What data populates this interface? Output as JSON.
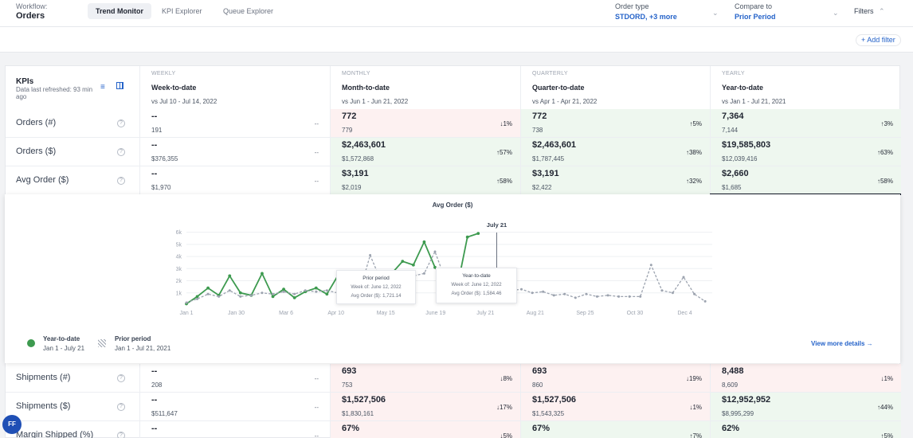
{
  "header": {
    "workflow_label": "Workflow:",
    "workflow_name": "Orders",
    "tabs": [
      {
        "label": "Trend Monitor",
        "active": true
      },
      {
        "label": "KPI Explorer",
        "active": false
      },
      {
        "label": "Queue Explorer",
        "active": false
      }
    ],
    "order_type": {
      "label": "Order type",
      "value": "STDORD, +3 more"
    },
    "compare_to": {
      "label": "Compare to",
      "value": "Prior Period"
    },
    "filters_label": "Filters",
    "add_filter_label": "+ Add filter"
  },
  "kpis": {
    "title": "KPIs",
    "refreshed": "Data last refreshed: 93 min ago",
    "columns": [
      {
        "period": "WEEKLY",
        "ptd": "Week-to-date",
        "vs": "vs Jul 10 - Jul 14, 2022"
      },
      {
        "period": "MONTHLY",
        "ptd": "Month-to-date",
        "vs": "vs Jun 1 - Jun 21, 2022"
      },
      {
        "period": "QUARTERLY",
        "ptd": "Quarter-to-date",
        "vs": "vs Apr 1 - Apr 21, 2022"
      },
      {
        "period": "YEARLY",
        "ptd": "Year-to-date",
        "vs": "vs Jan 1 - Jul 21, 2021"
      }
    ],
    "rows_top": [
      {
        "label": "Orders (#)",
        "cells": [
          {
            "value": "--",
            "prior": "191",
            "change": "--",
            "tone": "none"
          },
          {
            "value": "772",
            "prior": "779",
            "change": "↓1%",
            "tone": "red"
          },
          {
            "value": "772",
            "prior": "738",
            "change": "↑5%",
            "tone": "green"
          },
          {
            "value": "7,364",
            "prior": "7,144",
            "change": "↑3%",
            "tone": "green"
          }
        ]
      },
      {
        "label": "Orders ($)",
        "cells": [
          {
            "value": "--",
            "prior": "$376,355",
            "change": "--",
            "tone": "none"
          },
          {
            "value": "$2,463,601",
            "prior": "$1,572,868",
            "change": "↑57%",
            "tone": "green"
          },
          {
            "value": "$2,463,601",
            "prior": "$1,787,445",
            "change": "↑38%",
            "tone": "green"
          },
          {
            "value": "$19,585,803",
            "prior": "$12,039,416",
            "change": "↑63%",
            "tone": "green"
          }
        ]
      },
      {
        "label": "Avg Order ($)",
        "cells": [
          {
            "value": "--",
            "prior": "$1,970",
            "change": "--",
            "tone": "none"
          },
          {
            "value": "$3,191",
            "prior": "$2,019",
            "change": "↑58%",
            "tone": "green"
          },
          {
            "value": "$3,191",
            "prior": "$2,422",
            "change": "↑32%",
            "tone": "green"
          },
          {
            "value": "$2,660",
            "prior": "$1,685",
            "change": "↑58%",
            "tone": "green"
          }
        ]
      }
    ],
    "rows_bottom": [
      {
        "label": "Shipments (#)",
        "cells": [
          {
            "value": "--",
            "prior": "208",
            "change": "--",
            "tone": "none"
          },
          {
            "value": "693",
            "prior": "753",
            "change": "↓8%",
            "tone": "red"
          },
          {
            "value": "693",
            "prior": "860",
            "change": "↓19%",
            "tone": "red"
          },
          {
            "value": "8,488",
            "prior": "8,609",
            "change": "↓1%",
            "tone": "red"
          }
        ]
      },
      {
        "label": "Shipments ($)",
        "cells": [
          {
            "value": "--",
            "prior": "$511,647",
            "change": "--",
            "tone": "none"
          },
          {
            "value": "$1,527,506",
            "prior": "$1,830,161",
            "change": "↓17%",
            "tone": "red"
          },
          {
            "value": "$1,527,506",
            "prior": "$1,543,325",
            "change": "↓1%",
            "tone": "red"
          },
          {
            "value": "$12,952,952",
            "prior": "$8,995,299",
            "change": "↑44%",
            "tone": "green"
          }
        ]
      },
      {
        "label": "Margin Shipped (%)",
        "cells": [
          {
            "value": "--",
            "prior": "",
            "change": "--",
            "tone": "none"
          },
          {
            "value": "67%",
            "prior": "",
            "change": "↓5%",
            "tone": "red"
          },
          {
            "value": "67%",
            "prior": "",
            "change": "↑7%",
            "tone": "green"
          },
          {
            "value": "62%",
            "prior": "",
            "change": "↑5%",
            "tone": "green"
          }
        ]
      }
    ]
  },
  "chart_data": {
    "type": "line",
    "title": "Avg Order ($)",
    "x_ticks": [
      "Jan 1",
      "Jan 30",
      "Mar 6",
      "Apr 10",
      "May 15",
      "June 19",
      "July 21",
      "Aug 21",
      "Sep 25",
      "Oct 30",
      "Dec 4"
    ],
    "y_ticks": [
      "1k",
      "2k",
      "3k",
      "4k",
      "5k",
      "6k"
    ],
    "ylim": [
      0,
      6500
    ],
    "x_range": [
      0,
      338
    ],
    "marker_label": "July 21",
    "marker_x": 201,
    "series": [
      {
        "name": "Year-to-date",
        "color": "#3d9a4f",
        "style": "solid",
        "x": [
          0,
          7,
          14,
          21,
          28,
          35,
          42,
          49,
          56,
          63,
          70,
          77,
          84,
          91,
          98,
          105,
          112,
          119,
          126,
          133,
          140,
          147,
          154,
          161,
          168,
          175,
          182,
          189
        ],
        "y": [
          100,
          700,
          1400,
          800,
          2400,
          1000,
          800,
          2600,
          700,
          1300,
          600,
          1100,
          1400,
          900,
          2400,
          1400,
          2100,
          1300,
          1900,
          2600,
          3600,
          3300,
          5200,
          3100,
          2000,
          1200,
          5600,
          5900
        ]
      },
      {
        "name": "Prior period",
        "color": "#9ca3af",
        "style": "dashed",
        "x": [
          0,
          7,
          14,
          21,
          28,
          35,
          42,
          49,
          56,
          63,
          70,
          77,
          84,
          91,
          98,
          105,
          112,
          119,
          126,
          133,
          140,
          147,
          154,
          161,
          168,
          175,
          182,
          189,
          196,
          203,
          210,
          217,
          224,
          231,
          238,
          245,
          252,
          259,
          266,
          273,
          280,
          287,
          294,
          301,
          308,
          315,
          322,
          329,
          336
        ],
        "y": [
          200,
          500,
          900,
          700,
          1200,
          700,
          800,
          1000,
          900,
          1100,
          900,
          1200,
          1100,
          1200,
          1000,
          1100,
          1000,
          4100,
          2000,
          1600,
          1400,
          2400,
          2600,
          4400,
          2000,
          1500,
          1800,
          1700,
          1721,
          1400,
          1200,
          1300,
          1000,
          1100,
          800,
          900,
          600,
          900,
          700,
          800,
          700,
          700,
          700,
          3300,
          1200,
          1000,
          2300,
          900,
          300
        ]
      }
    ],
    "tooltips": [
      {
        "title": "Prior period",
        "week": "Week of: June 12, 2022",
        "value": "Avg Order ($): 1,721.14"
      },
      {
        "title": "Year-to-date",
        "week": "Week of: June 12, 2022",
        "value": "Avg Order ($): 1,584.46"
      }
    ],
    "legend": [
      {
        "name": "Year-to-date",
        "range": "Jan 1 - July 21"
      },
      {
        "name": "Prior period",
        "range": "Jan 1 - Jul 21, 2021"
      }
    ],
    "view_more": "View more details →"
  },
  "user": {
    "initials": "FF"
  }
}
